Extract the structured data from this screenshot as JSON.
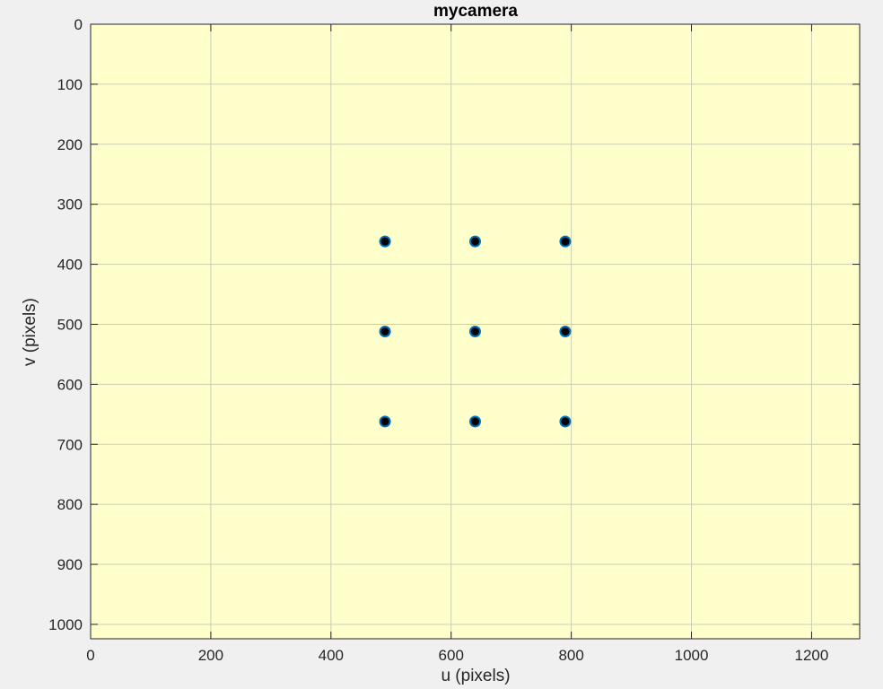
{
  "window": {
    "background": "#f0f0f0"
  },
  "chart_data": {
    "type": "scatter",
    "title": "mycamera",
    "xlabel": "u (pixels)",
    "ylabel": "v (pixels)",
    "xlim": [
      0,
      1280
    ],
    "ylim": [
      0,
      1024
    ],
    "y_reversed": true,
    "grid": true,
    "box": true,
    "xticks": [
      0,
      200,
      400,
      600,
      800,
      1000,
      1200
    ],
    "yticks": [
      0,
      100,
      200,
      300,
      400,
      500,
      600,
      700,
      800,
      900,
      1000
    ],
    "colors": {
      "plot_background": "#ffffcc",
      "marker_face": "#000000",
      "marker_edge": "#0072bd",
      "grid": "#cdcdb4",
      "axis": "#262626"
    },
    "series": [
      {
        "marker": "o",
        "points": [
          {
            "x": 490,
            "y": 362
          },
          {
            "x": 640,
            "y": 362
          },
          {
            "x": 790,
            "y": 362
          },
          {
            "x": 490,
            "y": 512
          },
          {
            "x": 640,
            "y": 512
          },
          {
            "x": 790,
            "y": 512
          },
          {
            "x": 490,
            "y": 662
          },
          {
            "x": 640,
            "y": 662
          },
          {
            "x": 790,
            "y": 662
          }
        ]
      }
    ]
  }
}
